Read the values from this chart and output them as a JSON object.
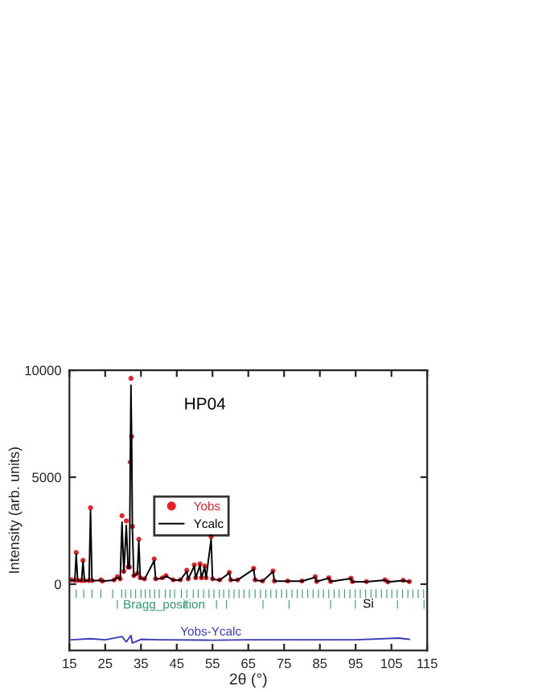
{
  "chart_data": {
    "type": "scatter",
    "xlabel": "2θ (°)",
    "ylabel": "Intensity (arb. units)",
    "xlim": [
      15,
      115
    ],
    "xticks": [
      15,
      25,
      35,
      45,
      55,
      65,
      75,
      85,
      95,
      105,
      115
    ],
    "ylim": [
      -3100,
      10000
    ],
    "yticks": [
      0,
      5000,
      10000
    ],
    "grid": false,
    "legend": "center left",
    "annotations": [
      "HP04",
      "Bragg_position",
      {
        "text": "Si",
        "x": 97,
        "y": -950
      },
      {
        "text": "Yobs-Ycalc",
        "x": 46,
        "y": -2250
      }
    ],
    "series": [
      {
        "name": "Yobs",
        "marker": "circle",
        "color": "#e8202a",
        "x": [
          15.5,
          16.5,
          16.9,
          17.3,
          18.4,
          18.8,
          19.2,
          20.5,
          20.9,
          21.3,
          23.8,
          24.2,
          27.5,
          28.4,
          29.2,
          29.7,
          30.2,
          30.9,
          31.4,
          31.8,
          32.0,
          32.2,
          32.4,
          32.6,
          33.0,
          34.0,
          34.4,
          34.8,
          36.0,
          38.7,
          39.1,
          41.0,
          42.0,
          44.0,
          46.0,
          47.8,
          48.2,
          49.9,
          50.3,
          51.5,
          51.9,
          52.8,
          53.2,
          54.6,
          55.0,
          57.0,
          59.7,
          60.1,
          62.0,
          66.5,
          66.9,
          69.0,
          71.9,
          72.3,
          76.0,
          80.0,
          83.7,
          84.1,
          87.5,
          88.0,
          93.7,
          94.1,
          98.0,
          103.2,
          104.0,
          108.3,
          110.0
        ],
        "values": [
          200,
          180,
          1480,
          180,
          170,
          1110,
          170,
          170,
          3570,
          170,
          200,
          150,
          200,
          350,
          250,
          3200,
          600,
          2960,
          800,
          800,
          5700,
          9620,
          6900,
          2700,
          400,
          500,
          2100,
          300,
          250,
          1180,
          250,
          300,
          400,
          200,
          200,
          650,
          250,
          900,
          300,
          950,
          300,
          850,
          300,
          2220,
          250,
          200,
          550,
          200,
          200,
          740,
          200,
          150,
          620,
          150,
          150,
          150,
          350,
          130,
          300,
          130,
          280,
          120,
          120,
          200,
          110,
          180,
          120
        ]
      },
      {
        "name": "Ycalc",
        "type": "line",
        "color": "#000000",
        "line_style": "solid",
        "x": [
          15.5,
          16.5,
          16.9,
          17.3,
          18.4,
          18.8,
          19.2,
          20.5,
          20.9,
          21.3,
          23.8,
          24.2,
          27.5,
          28.4,
          29.2,
          29.7,
          30.2,
          30.9,
          31.4,
          31.8,
          32.0,
          32.2,
          32.4,
          32.6,
          33.0,
          34.0,
          34.4,
          34.8,
          36.0,
          38.7,
          39.1,
          41.0,
          42.0,
          44.0,
          46.0,
          47.8,
          48.2,
          49.9,
          50.3,
          51.5,
          51.9,
          52.8,
          53.2,
          54.6,
          55.0,
          57.0,
          59.7,
          60.1,
          62.0,
          66.5,
          66.9,
          69.0,
          71.9,
          72.3,
          76.0,
          80.0,
          83.7,
          84.1,
          87.5,
          88.0,
          93.7,
          94.1,
          98.0,
          103.2,
          104.0,
          108.3,
          110.0
        ],
        "values": [
          180,
          170,
          1400,
          170,
          160,
          1050,
          160,
          160,
          3450,
          160,
          180,
          140,
          190,
          320,
          230,
          2900,
          550,
          2750,
          750,
          750,
          5500,
          9300,
          6700,
          2600,
          380,
          480,
          2000,
          280,
          230,
          1100,
          230,
          280,
          380,
          190,
          190,
          600,
          230,
          850,
          280,
          900,
          280,
          800,
          280,
          2100,
          230,
          190,
          520,
          190,
          190,
          700,
          190,
          140,
          590,
          140,
          140,
          140,
          320,
          120,
          280,
          120,
          260,
          110,
          110,
          190,
          100,
          170,
          110
        ]
      },
      {
        "type": "line",
        "color": "#3a3ab8",
        "line_style": "solid",
        "x": [
          15.5,
          20.9,
          25.0,
          29.7,
          30.9,
          32.2,
          32.6,
          35.0,
          40.0,
          55.0,
          65.0,
          80.0,
          95.0,
          107.0,
          110.0
        ],
        "values": [
          -2600,
          -2550,
          -2600,
          -2450,
          -2700,
          -2400,
          -2750,
          -2580,
          -2600,
          -2620,
          -2600,
          -2600,
          -2600,
          -2520,
          -2580
        ]
      },
      {
        "type": "bar",
        "color": "#2e9e6e",
        "base": [
          -650,
          -650,
          -650,
          -650,
          -650,
          -650,
          -650,
          -650,
          -650,
          -650,
          -650,
          -650,
          -650,
          -650,
          -650,
          -650,
          -650,
          -650,
          -650,
          -650,
          -650,
          -650,
          -650,
          -650,
          -650,
          -650,
          -650,
          -650,
          -650,
          -650,
          -650,
          -650,
          -650,
          -650,
          -650,
          -650,
          -650,
          -650,
          -650,
          -650,
          -650,
          -650,
          -650,
          -650,
          -650,
          -650,
          -650,
          -650,
          -650,
          -650,
          -650,
          -650,
          -650,
          -650,
          -650,
          -650,
          -650,
          -650,
          -650,
          -650,
          -650,
          -650,
          -650,
          -650
        ],
        "x": [
          16.9,
          19.0,
          21.3,
          23.8,
          27.1,
          29.6,
          30.7,
          32.2,
          33.5,
          35.0,
          36.2,
          37.5,
          38.8,
          40.1,
          41.8,
          43.1,
          44.4,
          46.3,
          47.8,
          49.6,
          51.0,
          52.5,
          54.0,
          55.4,
          56.9,
          58.1,
          59.6,
          61.0,
          62.4,
          63.8,
          65.3,
          66.9,
          68.4,
          69.9,
          71.3,
          72.8,
          74.3,
          75.7,
          77.2,
          78.7,
          80.1,
          81.6,
          83.1,
          84.6,
          86.0,
          87.5,
          89.0,
          90.4,
          91.9,
          93.4,
          94.9,
          96.3,
          97.8,
          99.3,
          100.7,
          102.2,
          103.7,
          105.1,
          106.6,
          108.1,
          109.6,
          111.0,
          112.5,
          114.0
        ],
        "values": [
          400,
          400,
          400,
          400,
          400,
          400,
          400,
          400,
          400,
          400,
          400,
          400,
          400,
          400,
          400,
          400,
          400,
          400,
          400,
          400,
          400,
          400,
          400,
          400,
          400,
          400,
          400,
          400,
          400,
          400,
          400,
          400,
          400,
          400,
          400,
          400,
          400,
          400,
          400,
          400,
          400,
          400,
          400,
          400,
          400,
          400,
          400,
          400,
          400,
          400,
          400,
          400,
          400,
          400,
          400,
          400,
          400,
          400,
          400,
          400,
          400,
          400,
          400,
          400
        ]
      },
      {
        "type": "bar",
        "color": "#2e9e6e",
        "base": [
          -1150,
          -1150,
          -1150,
          -1150,
          -1150,
          -1150,
          -1150,
          -1150,
          -1150,
          -1150
        ],
        "x": [
          28.4,
          47.3,
          56.1,
          58.9,
          69.1,
          76.4,
          88.0,
          94.9,
          106.7,
          114.1
        ],
        "values": [
          400,
          400,
          400,
          400,
          400,
          400,
          400,
          400,
          400,
          400
        ]
      }
    ]
  }
}
